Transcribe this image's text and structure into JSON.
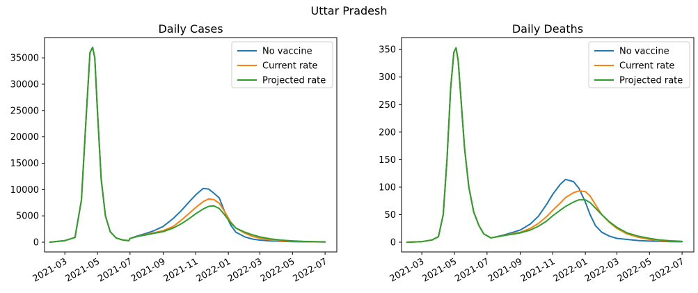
{
  "suptitle": "Uttar Pradesh",
  "chart_data": [
    {
      "type": "line",
      "title": "Daily Cases",
      "xlabel": "",
      "ylabel": "",
      "x_ticks": [
        "2021-03",
        "2021-05",
        "2021-07",
        "2021-09",
        "2021-11",
        "2022-01",
        "2022-03",
        "2022-05",
        "2022-07"
      ],
      "yticks": [
        0,
        5000,
        10000,
        15000,
        20000,
        25000,
        30000,
        35000
      ],
      "xlim": [
        "2021-01-22",
        "2022-07-23"
      ],
      "ylim": [
        -1850,
        38850
      ],
      "grid": false,
      "legend": "top-right",
      "x": [
        "2021-02-01",
        "2021-03-01",
        "2021-03-20",
        "2021-04-01",
        "2021-04-10",
        "2021-04-17",
        "2021-04-22",
        "2021-04-26",
        "2021-05-01",
        "2021-05-08",
        "2021-05-16",
        "2021-05-25",
        "2021-06-05",
        "2021-06-18",
        "2021-06-29",
        "2021-07-01",
        "2021-07-15",
        "2021-08-01",
        "2021-08-15",
        "2021-09-01",
        "2021-09-20",
        "2021-10-05",
        "2021-10-20",
        "2021-11-01",
        "2021-11-15",
        "2021-11-25",
        "2021-12-05",
        "2021-12-15",
        "2021-12-25",
        "2022-01-05",
        "2022-01-15",
        "2022-02-01",
        "2022-02-15",
        "2022-03-01",
        "2022-03-20",
        "2022-04-10",
        "2022-05-01",
        "2022-05-20",
        "2022-06-10",
        "2022-07-01"
      ],
      "series": [
        {
          "name": "No vaccine",
          "color": "#1f77b4",
          "values": [
            0,
            300,
            900,
            8000,
            24000,
            36000,
            37000,
            35000,
            25000,
            12000,
            5000,
            2000,
            800,
            400,
            300,
            700,
            1200,
            1700,
            2200,
            3000,
            4500,
            6000,
            7700,
            9000,
            10200,
            10100,
            9300,
            8400,
            5800,
            3300,
            1900,
            1000,
            600,
            400,
            250,
            160,
            110,
            80,
            60,
            45
          ]
        },
        {
          "name": "Current rate",
          "color": "#ff7f0e",
          "values": [
            0,
            300,
            900,
            8000,
            24000,
            36000,
            37000,
            35000,
            25000,
            12000,
            5000,
            2000,
            800,
            400,
            300,
            700,
            1100,
            1500,
            1800,
            2200,
            3000,
            4200,
            5500,
            6600,
            7700,
            8200,
            8100,
            7400,
            5800,
            3900,
            2700,
            1700,
            1100,
            750,
            450,
            280,
            180,
            120,
            80,
            55
          ]
        },
        {
          "name": "Projected rate",
          "color": "#2ca02c",
          "values": [
            0,
            300,
            900,
            8000,
            24000,
            36000,
            37000,
            35000,
            25000,
            12000,
            5000,
            2000,
            800,
            400,
            300,
            700,
            1100,
            1400,
            1700,
            2000,
            2700,
            3500,
            4500,
            5400,
            6300,
            6800,
            6900,
            6400,
            5200,
            3700,
            2700,
            1900,
            1400,
            1000,
            650,
            400,
            250,
            160,
            100,
            60
          ]
        }
      ]
    },
    {
      "type": "line",
      "title": "Daily Deaths",
      "xlabel": "",
      "ylabel": "",
      "x_ticks": [
        "2021-03",
        "2021-05",
        "2021-07",
        "2021-09",
        "2021-11",
        "2022-01",
        "2022-03",
        "2022-05",
        "2022-07"
      ],
      "yticks": [
        0,
        50,
        100,
        150,
        200,
        250,
        300,
        350
      ],
      "xlim": [
        "2021-01-22",
        "2022-07-23"
      ],
      "ylim": [
        -17.7,
        371.7
      ],
      "grid": false,
      "legend": "top-right",
      "x": [
        "2021-02-01",
        "2021-03-01",
        "2021-03-20",
        "2021-04-01",
        "2021-04-10",
        "2021-04-17",
        "2021-04-24",
        "2021-04-30",
        "2021-05-04",
        "2021-05-08",
        "2021-05-14",
        "2021-05-20",
        "2021-05-28",
        "2021-06-06",
        "2021-06-16",
        "2021-06-25",
        "2021-07-08",
        "2021-07-15",
        "2021-08-01",
        "2021-08-15",
        "2021-09-01",
        "2021-09-20",
        "2021-10-05",
        "2021-10-20",
        "2021-11-01",
        "2021-11-15",
        "2021-11-25",
        "2021-12-10",
        "2021-12-20",
        "2022-01-01",
        "2022-01-10",
        "2022-01-20",
        "2022-02-01",
        "2022-02-15",
        "2022-03-01",
        "2022-03-20",
        "2022-04-10",
        "2022-05-01",
        "2022-05-20",
        "2022-06-10",
        "2022-07-01"
      ],
      "series": [
        {
          "name": "No vaccine",
          "color": "#1f77b4",
          "values": [
            0,
            1,
            4,
            10,
            50,
            150,
            280,
            345,
            353,
            330,
            250,
            170,
            100,
            55,
            30,
            15,
            8,
            9,
            13,
            17,
            22,
            33,
            47,
            68,
            87,
            105,
            114,
            110,
            98,
            73,
            50,
            30,
            18,
            11,
            7,
            5,
            3,
            2,
            1.5,
            1,
            0.7
          ]
        },
        {
          "name": "Current rate",
          "color": "#ff7f0e",
          "values": [
            0,
            1,
            4,
            10,
            50,
            150,
            280,
            345,
            353,
            330,
            250,
            170,
            100,
            55,
            30,
            15,
            8,
            9,
            12,
            15,
            18,
            25,
            34,
            46,
            58,
            71,
            81,
            90,
            93,
            92,
            84,
            68,
            50,
            36,
            25,
            15,
            9,
            5,
            3,
            2,
            1.2
          ]
        },
        {
          "name": "Projected rate",
          "color": "#2ca02c",
          "values": [
            0,
            1,
            4,
            10,
            50,
            150,
            280,
            345,
            353,
            330,
            250,
            170,
            100,
            55,
            30,
            15,
            8,
            9,
            12,
            14,
            17,
            22,
            29,
            38,
            48,
            58,
            65,
            73,
            77,
            77,
            72,
            62,
            50,
            37,
            27,
            17,
            11,
            7,
            4,
            2.5,
            1.5
          ]
        }
      ]
    }
  ]
}
